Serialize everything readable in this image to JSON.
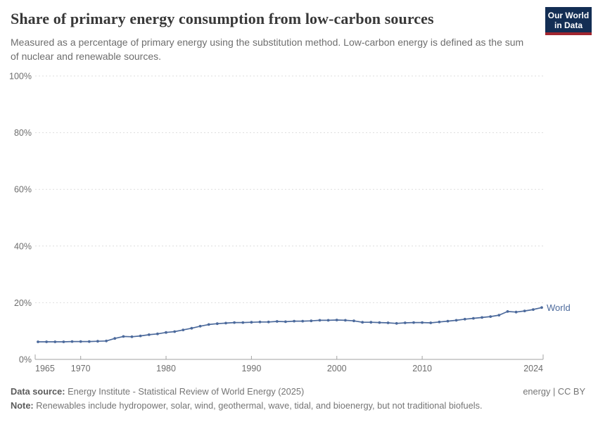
{
  "header": {
    "title": "Share of primary energy consumption from low-carbon sources",
    "subtitle": "Measured as a percentage of primary energy using the substitution method. Low-carbon energy is defined as the sum of nuclear and renewable sources.",
    "logo": {
      "line1": "Our World",
      "line2": "in Data"
    }
  },
  "footer": {
    "data_source_label": "Data source:",
    "data_source": "Energy Institute - Statistical Review of World Energy (2025)",
    "license": "energy | CC BY",
    "note_label": "Note:",
    "note": "Renewables include hydropower, solar, wind, geothermal, wave, tidal, and bioenergy, but not traditional biofuels."
  },
  "chart_data": {
    "type": "line",
    "title": "Share of primary energy consumption from low-carbon sources",
    "xlabel": "",
    "ylabel": "",
    "xlim": [
      1965,
      2024
    ],
    "ylim": [
      0,
      100
    ],
    "x_ticks": [
      1965,
      1970,
      1980,
      1990,
      2000,
      2010,
      2024
    ],
    "y_ticks": [
      0,
      20,
      40,
      60,
      80,
      100
    ],
    "y_tick_suffix": "%",
    "grid": "horizontal-dashed",
    "legend_position": "end-of-line-label",
    "series": [
      {
        "name": "World",
        "color": "#4c6a9c",
        "x": [
          1965,
          1966,
          1967,
          1968,
          1969,
          1970,
          1971,
          1972,
          1973,
          1974,
          1975,
          1976,
          1977,
          1978,
          1979,
          1980,
          1981,
          1982,
          1983,
          1984,
          1985,
          1986,
          1987,
          1988,
          1989,
          1990,
          1991,
          1992,
          1993,
          1994,
          1995,
          1996,
          1997,
          1998,
          1999,
          2000,
          2001,
          2002,
          2003,
          2004,
          2005,
          2006,
          2007,
          2008,
          2009,
          2010,
          2011,
          2012,
          2013,
          2014,
          2015,
          2016,
          2017,
          2018,
          2019,
          2020,
          2021,
          2022,
          2023,
          2024
        ],
        "values": [
          6.2,
          6.2,
          6.2,
          6.2,
          6.3,
          6.3,
          6.3,
          6.4,
          6.5,
          7.4,
          8.1,
          8.0,
          8.3,
          8.7,
          9.0,
          9.5,
          9.8,
          10.4,
          11.0,
          11.7,
          12.3,
          12.6,
          12.8,
          13.0,
          13.0,
          13.1,
          13.2,
          13.2,
          13.4,
          13.3,
          13.5,
          13.5,
          13.6,
          13.8,
          13.8,
          13.9,
          13.8,
          13.6,
          13.1,
          13.1,
          13.0,
          12.9,
          12.7,
          12.9,
          13.0,
          13.0,
          12.9,
          13.2,
          13.5,
          13.8,
          14.2,
          14.5,
          14.8,
          15.1,
          15.6,
          16.9,
          16.7,
          17.1,
          17.6,
          18.3
        ]
      }
    ]
  },
  "colors": {
    "line": "#4c6a9c",
    "gridline": "#dedede",
    "axis": "#a3a3a3",
    "tick_label": "#6e6e6e",
    "logo_bg": "#132e54",
    "logo_red": "#a1262f"
  }
}
